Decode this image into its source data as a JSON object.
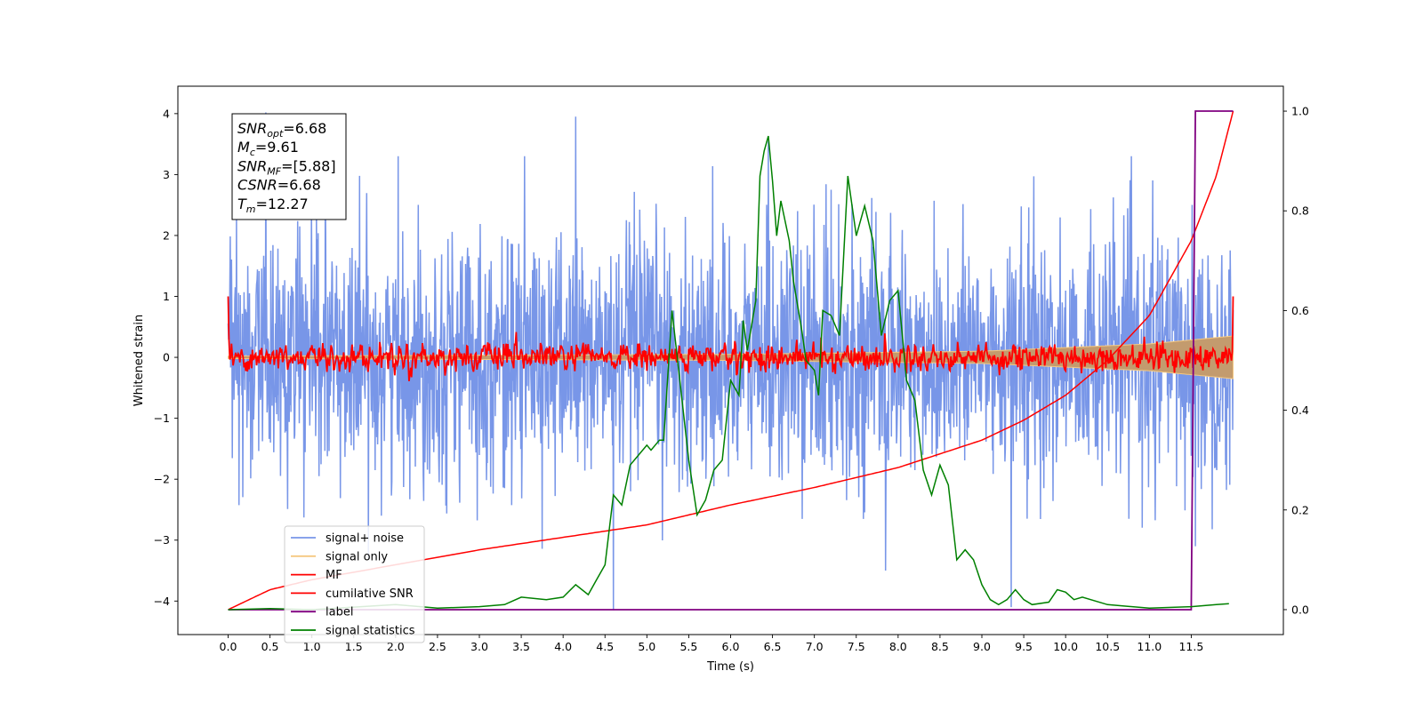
{
  "chart_data": {
    "type": "line",
    "xlabel": "Time (s)",
    "ylabel": "Whitened strain",
    "xlim": [
      -0.6,
      12.6
    ],
    "ylim": [
      -4.55,
      4.45
    ],
    "y2lim": [
      -0.05,
      1.05
    ],
    "xticks": [
      0.0,
      0.5,
      1.0,
      1.5,
      2.0,
      2.5,
      3.0,
      3.5,
      4.0,
      4.5,
      5.0,
      5.5,
      6.0,
      6.5,
      7.0,
      7.5,
      8.0,
      8.5,
      9.0,
      9.5,
      10.0,
      10.5,
      11.0,
      11.5
    ],
    "xtick_labels": [
      "0.0",
      "0.5",
      "1.0",
      "1.5",
      "2.0",
      "2.5",
      "3.0",
      "3.5",
      "4.0",
      "4.5",
      "5.0",
      "5.5",
      "6.0",
      "6.5",
      "7.0",
      "7.5",
      "8.0",
      "8.5",
      "9.0",
      "9.5",
      "10.0",
      "10.5",
      "11.0",
      "11.5"
    ],
    "yticks": [
      -4,
      -3,
      -2,
      -1,
      0,
      1,
      2,
      3,
      4
    ],
    "ytick_labels": [
      "−4",
      "−3",
      "−2",
      "−1",
      "0",
      "1",
      "2",
      "3",
      "4"
    ],
    "y2ticks": [
      0.0,
      0.2,
      0.4,
      0.6,
      0.8,
      1.0
    ],
    "y2tick_labels": [
      "0.0",
      "0.2",
      "0.4",
      "0.6",
      "0.8",
      "1.0"
    ],
    "grid": false,
    "legend_position": "lower-left",
    "annotation": {
      "lines": [
        {
          "base": "SNR",
          "sub": "opt",
          "value": "=6.68"
        },
        {
          "base": "M",
          "sub": "c",
          "value": "=9.61"
        },
        {
          "base": "SNR",
          "sub": "MF",
          "value": "=[5.88]"
        },
        {
          "base": "CSNR",
          "sub": "",
          "value": "=6.68"
        },
        {
          "base": "T",
          "sub": "m",
          "value": "=12.27"
        }
      ]
    },
    "series": [
      {
        "name": "signal+ noise",
        "color": "#7896e8",
        "axis": "left",
        "style": "noise",
        "x_range": [
          0.0,
          12.0
        ],
        "std": 1.0,
        "extremes": [
          [
            0.45,
            4.02
          ],
          [
            4.15,
            3.95
          ],
          [
            6.45,
            3.55
          ],
          [
            4.6,
            -4.15
          ],
          [
            9.35,
            -4.1
          ],
          [
            7.85,
            -3.5
          ],
          [
            11.55,
            -3.1
          ]
        ]
      },
      {
        "name": "signal only",
        "color": "#f5c880",
        "axis": "left",
        "style": "chirp",
        "x_range": [
          0.0,
          12.0
        ],
        "envelope": [
          [
            0.0,
            0.02
          ],
          [
            6.0,
            0.05
          ],
          [
            9.0,
            0.1
          ],
          [
            11.0,
            0.22
          ],
          [
            12.0,
            0.35
          ]
        ]
      },
      {
        "name": "MF",
        "color": "#ff0000",
        "axis": "left",
        "style": "noise-smooth",
        "x_range": [
          0.0,
          12.0
        ],
        "std": 0.11,
        "endpoints": [
          [
            0.0,
            1.0
          ],
          [
            12.0,
            1.0
          ]
        ]
      },
      {
        "name": "cumilative SNR",
        "color": "#ff0000",
        "axis": "right",
        "style": "curve",
        "x": [
          0.0,
          0.5,
          1.0,
          2.0,
          3.0,
          4.0,
          5.0,
          6.0,
          7.0,
          8.0,
          9.0,
          9.5,
          10.0,
          10.5,
          11.0,
          11.5,
          11.8,
          12.0
        ],
        "y": [
          0.0,
          0.04,
          0.06,
          0.09,
          0.12,
          0.145,
          0.17,
          0.21,
          0.245,
          0.285,
          0.34,
          0.38,
          0.43,
          0.5,
          0.59,
          0.74,
          0.87,
          1.0
        ]
      },
      {
        "name": "label",
        "color": "#800080",
        "axis": "right",
        "style": "step",
        "x": [
          0.0,
          11.5,
          11.55,
          12.0
        ],
        "y": [
          0.0,
          0.0,
          1.0,
          1.0
        ]
      },
      {
        "name": "signal statistics",
        "color": "#008000",
        "axis": "right",
        "style": "curve",
        "x": [
          0.0,
          0.5,
          1.0,
          1.5,
          2.0,
          2.5,
          3.0,
          3.3,
          3.5,
          3.8,
          4.0,
          4.15,
          4.3,
          4.4,
          4.5,
          4.6,
          4.7,
          4.8,
          4.9,
          5.0,
          5.05,
          5.15,
          5.2,
          5.3,
          5.4,
          5.5,
          5.6,
          5.7,
          5.8,
          5.9,
          6.0,
          6.1,
          6.15,
          6.2,
          6.3,
          6.35,
          6.4,
          6.45,
          6.5,
          6.55,
          6.6,
          6.7,
          6.75,
          6.85,
          6.9,
          7.0,
          7.05,
          7.1,
          7.2,
          7.3,
          7.4,
          7.5,
          7.6,
          7.7,
          7.8,
          7.9,
          8.0,
          8.1,
          8.2,
          8.3,
          8.4,
          8.5,
          8.6,
          8.7,
          8.8,
          8.9,
          9.0,
          9.1,
          9.2,
          9.3,
          9.4,
          9.5,
          9.6,
          9.8,
          9.9,
          10.0,
          10.1,
          10.2,
          10.5,
          11.0,
          11.5,
          11.8,
          11.95
        ],
        "y": [
          0.0,
          0.002,
          0.0,
          0.005,
          0.01,
          0.003,
          0.006,
          0.01,
          0.025,
          0.02,
          0.025,
          0.05,
          0.03,
          0.06,
          0.09,
          0.23,
          0.21,
          0.29,
          0.31,
          0.33,
          0.32,
          0.34,
          0.34,
          0.6,
          0.45,
          0.3,
          0.19,
          0.22,
          0.28,
          0.3,
          0.46,
          0.43,
          0.58,
          0.52,
          0.62,
          0.87,
          0.92,
          0.95,
          0.86,
          0.75,
          0.82,
          0.74,
          0.66,
          0.56,
          0.5,
          0.48,
          0.43,
          0.6,
          0.59,
          0.55,
          0.87,
          0.75,
          0.81,
          0.74,
          0.55,
          0.62,
          0.64,
          0.46,
          0.42,
          0.28,
          0.23,
          0.29,
          0.25,
          0.1,
          0.12,
          0.1,
          0.05,
          0.02,
          0.01,
          0.02,
          0.04,
          0.02,
          0.01,
          0.015,
          0.04,
          0.035,
          0.02,
          0.025,
          0.01,
          0.003,
          0.006,
          0.01,
          0.012
        ]
      }
    ]
  }
}
